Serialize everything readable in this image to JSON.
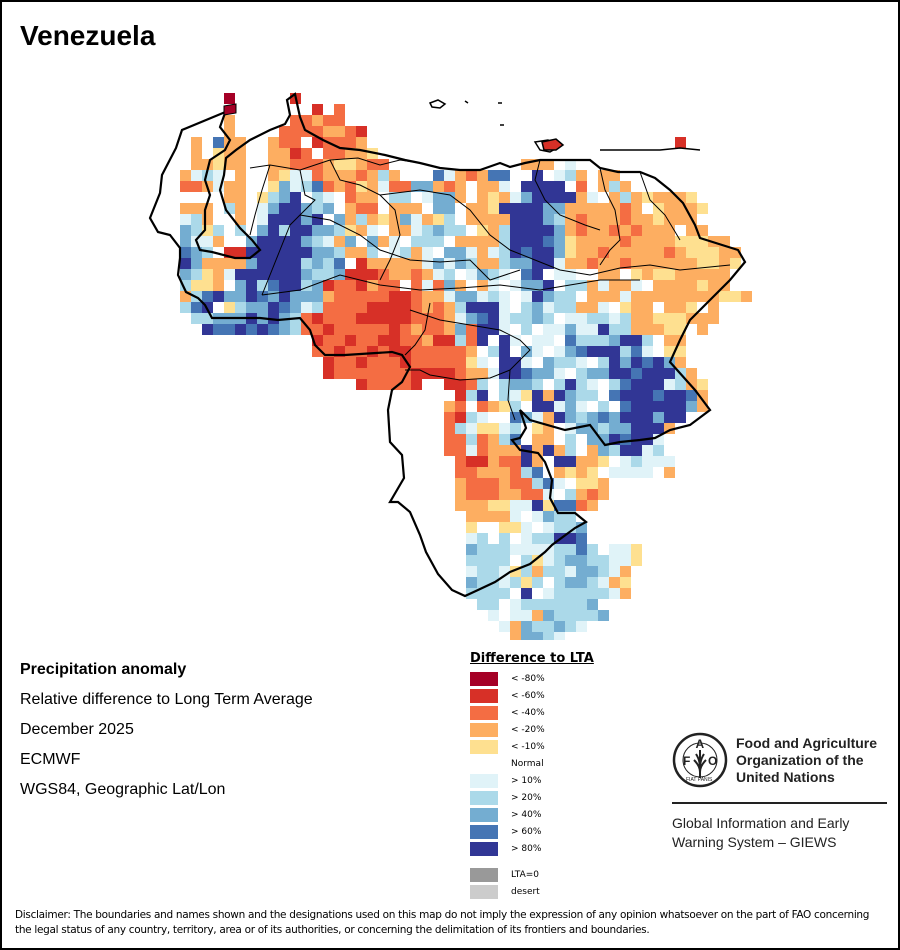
{
  "title": "Venezuela",
  "meta": {
    "heading": "Precipitation anomaly",
    "subtitle": "Relative difference to Long Term Average",
    "period": "December 2025",
    "source": "ECMWF",
    "projection": "WGS84, Geographic Lat/Lon"
  },
  "legend": {
    "title": "Difference to LTA",
    "classes": [
      {
        "code": "a",
        "label": "< -80%",
        "color": "#a50026"
      },
      {
        "code": "b",
        "label": "< -60%",
        "color": "#d73027"
      },
      {
        "code": "c",
        "label": "< -40%",
        "color": "#f46d43"
      },
      {
        "code": "d",
        "label": "< -20%",
        "color": "#fdae61"
      },
      {
        "code": "e",
        "label": "< -10%",
        "color": "#fee090"
      },
      {
        "code": "0",
        "label": "Normal",
        "color": "#ffffff"
      },
      {
        "code": "f",
        "label": "> 10%",
        "color": "#e0f3f8"
      },
      {
        "code": "g",
        "label": "> 20%",
        "color": "#abd9e9"
      },
      {
        "code": "h",
        "label": "> 40%",
        "color": "#74add1"
      },
      {
        "code": "i",
        "label": "> 60%",
        "color": "#4575b4"
      },
      {
        "code": "j",
        "label": "> 80%",
        "color": "#313695"
      }
    ],
    "extra": [
      {
        "label": "LTA=0",
        "color": "#999999"
      },
      {
        "label": "desert",
        "color": "#cccccc"
      }
    ]
  },
  "logo": {
    "org_lines": [
      "Food and Agriculture",
      "Organization of the",
      "United Nations"
    ],
    "system_lines": [
      "Global Information and Early",
      "Warning System – GIEWS"
    ],
    "emblem_letters": "FAO",
    "emblem_motto": "FIAT PANIS"
  },
  "disclaimer": "Disclaimer: The boundaries and names shown and the designations used on this map do not imply the expression of any opinion whatsoever on the part of FAO concerning the legal status of any country, territory, area or of its authorities, or concerning the delimitation of its frontiers and boundaries.",
  "anomaly_grid": {
    "description": "Per-cell anomaly class codes, rows north to south, columns west to east; '.' = no data / outside country",
    "rows": [
      "......................................................",
      "......................................................",
      "......................................................",
      "......a.....b.........................................",
      "..............b.c.....................................",
      "......d.....ccdcc.....................................",
      "......d....ccccddcb...................................",
      "...d.idd..dcc0bcccd............................b......",
      "...d0edd..ddbc0ccdde..................................",
      "...ddedd..ddcccdeedcc...........0ddd.f................",
      "..dfgf0d..deffcdddcdgd...ifdcdii00j0fgd.dd............",
      "..ccdfdd..ehfgicdcedfcchhdcd0ddf0jjjj0c0dgd............",
      "..0000dd.eghj0gf0cdd0gg0fhhd0dedfhjjjjdf0dgdeddde......",
      "..ddd0gd.fhjjhgh0dcc0ddd0hh0ddejjjjhhdddddcd0eddde.....",
      "..fgd.0d.fjjjhj0hdgdedhfdeg0ddddjjjhgdcdddcddeddd0.....",
      "..hgeg0g.hjgjjhhgedf0ddfghgg0edgjjjjhdcddcdcddd0dd.....",
      "..hffd0.hjjjjhgfdh0hdf0ggg0ddddgjjjiheddddcddddeeedd...",
      "..ihg0bbjjjjjjhhgddg0fgdf0hhfdfgjijjheddcdddddcdeeedd..",
      "..jhddddhjjjjghgi0bdddddfhfhgddghhjjfddcddcddddddeede..",
      "..hgedfjjjjjjhgghbbbcddcdfg0fhgf0ij0ff00dd0edeeddddd...",
      "..geed0hjgijjghbccbdcc0cfchd0df0fhhj0ggdfddf0ddddedd...",
      "..dgijhhjihjhhhdcccccbbcddfhhfgf0fjhgg0dddfddddddddeed..",
      "..gij0eghhjihfgccccbbbbcdcdgjjjf0ghfggddf0edd0dde0d...",
      "...gghhhjhjhgcbcccbbbbbcccdfhijfgghg0ffggfgddeeeddd....",
      "....jiijijihgccbcccccbcdccdhcjjf0g0ffhffjggdddee0d.....",
      "..............bccbccbbccdbbgcj0jf0ff0iggghjjg0dd.......",
      "..............ccbccbcbbcccccd0gj0hf0fhijjjgif0ee.......",
      "...............bccbcccbcccccef0jjf0hggf0gjhjijhd.......",
      "...............bcccccccbbbbcddfjjihhf0ghhjjijjjgd......",
      "..................bccccb..bbcg0ghhg0gjgf0gijjjfgde.....",
      "...........................bgj0gfejdjhgg0ijjjijjid.....",
      "..........................dc0cdeg0jjfhf0g0ijjjjjhd.....",
      "..........................cbgf00ihfdjhghihjjjhjj.......",
      "..........................cgfeefg0ed0fhhghhjjjd........",
      "..........................ccgcdgi0dd0g0hhjijjf.........",
      "..........................ccfcdddjdjdg0dhgjjfg.........",
      "...........................cbbdccjd0jjdde0fgfff.......",
      "...........................ccdddcgi0dede0ffff0d.......",
      "...........................dcccdccgif0eed.............",
      "...........................dcccddccf0gdcd.............",
      "...........................dddeeffjeiicd..............",
      "............................ddddf0fhgg................",
      "............................e00eef0fggh0..............",
      "............................fg0g0fggjji0..............",
      "............................hgggffffggig0ffe..........",
      "............................gggg0gefghhggffe..........",
      "............................fggfegdggfhhgfd...........",
      "............................hggfgeg0ghhgfde...........",
      "............................gggg0j0fgggggfd...........",
      "............................0gg0fggggggh..............",
      "..............................f0ffdhggggh.............",
      "..............................0fdhgghgf...............",
      "...............................0dhhgf.................",
      "..................................gf..................."
    ]
  }
}
